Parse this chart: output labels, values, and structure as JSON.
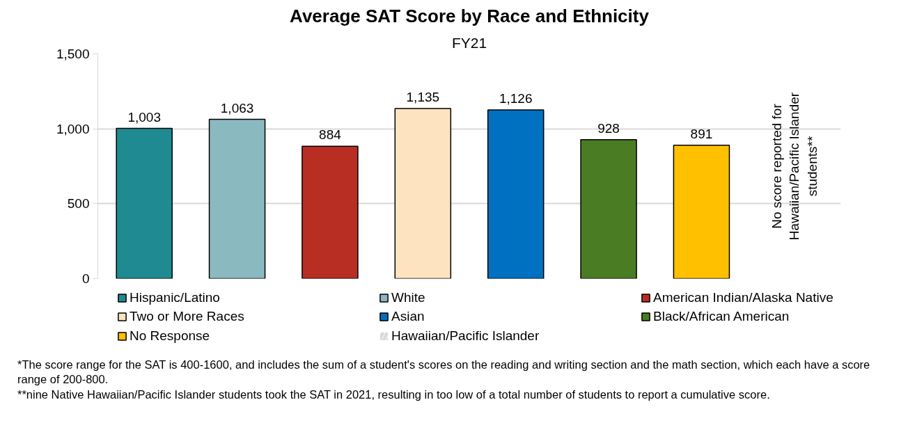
{
  "chart_data": {
    "type": "bar",
    "title": "Average SAT Score by Race and Ethnicity",
    "subtitle": "FY21",
    "categories": [
      null,
      null,
      null,
      null,
      null,
      null,
      null,
      null
    ],
    "series": [
      {
        "name": "Hispanic/Latino",
        "color": "#1f8a91",
        "values": [
          1003,
          null,
          null,
          null,
          null,
          null,
          null,
          null
        ],
        "value_labels": [
          "1,003",
          null,
          null,
          null,
          null,
          null,
          null,
          null
        ]
      },
      {
        "name": "White",
        "color": "#8ab9c0",
        "values": [
          null,
          1063,
          null,
          null,
          null,
          null,
          null,
          null
        ],
        "value_labels": [
          null,
          "1,063",
          null,
          null,
          null,
          null,
          null,
          null
        ]
      },
      {
        "name": "American Indian/Alaska Native",
        "color": "#b92e22",
        "values": [
          null,
          null,
          884,
          null,
          null,
          null,
          null,
          null
        ],
        "value_labels": [
          null,
          null,
          "884",
          null,
          null,
          null,
          null,
          null
        ]
      },
      {
        "name": "Two or More Races",
        "color": "#fde3c0",
        "values": [
          null,
          null,
          null,
          1135,
          null,
          null,
          null,
          null
        ],
        "value_labels": [
          null,
          null,
          null,
          "1,135",
          null,
          null,
          null,
          null
        ]
      },
      {
        "name": "Asian",
        "color": "#0070c0",
        "values": [
          null,
          null,
          null,
          null,
          1126,
          null,
          null,
          null
        ],
        "value_labels": [
          null,
          null,
          null,
          null,
          "1,126",
          null,
          null,
          null
        ]
      },
      {
        "name": "Black/African American",
        "color": "#4a7c23",
        "values": [
          null,
          null,
          null,
          null,
          null,
          928,
          null,
          null
        ],
        "value_labels": [
          null,
          null,
          null,
          null,
          null,
          "928",
          null,
          null
        ]
      },
      {
        "name": "No Response",
        "color": "#ffc000",
        "values": [
          null,
          null,
          null,
          null,
          null,
          null,
          891,
          null
        ],
        "value_labels": [
          null,
          null,
          null,
          null,
          null,
          null,
          "891",
          null
        ]
      },
      {
        "name": "Hawaiian/Pacific Islander",
        "color": "#d9d9d9",
        "values": [
          null,
          null,
          null,
          null,
          null,
          null,
          null,
          null
        ]
      }
    ],
    "ylim": [
      0,
      1500
    ],
    "yticks": [
      0,
      500,
      {
        "value": 1000,
        "label": "1,000"
      },
      {
        "value": 1500,
        "label": "1,500"
      }
    ],
    "grid": "y",
    "legend": "bottom",
    "tick_labels": "y",
    "annotations": [
      "No score reported for Hawaiian/Pacific Islander students**",
      "*The score range for the SAT is 400-1600, and includes the sum of a student's scores on the reading and writing section and the math section, which each have a score range of 200-800.",
      "**nine Native Hawaiian/Pacific Islander students took the SAT in 2021, resulting in too low of a total number of students to report a cumulative score."
    ]
  }
}
